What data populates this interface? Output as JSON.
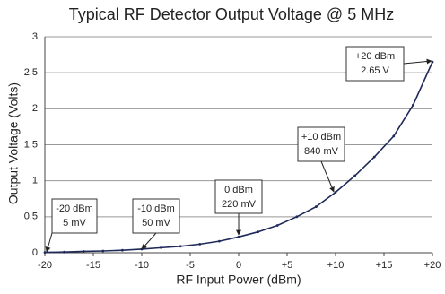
{
  "chart_data": {
    "type": "line",
    "title": "Typical RF Detector Output Voltage @ 5 MHz",
    "x_label": "RF Input Power (dBm)",
    "y_label": "Output Voltage (Volts)",
    "x": [
      -20,
      -18,
      -16,
      -14,
      -12,
      -10,
      -8,
      -6,
      -4,
      -2,
      0,
      2,
      4,
      6,
      8,
      10,
      12,
      14,
      16,
      18,
      20
    ],
    "values": [
      0.005,
      0.01,
      0.02,
      0.025,
      0.035,
      0.05,
      0.07,
      0.09,
      0.12,
      0.16,
      0.22,
      0.29,
      0.38,
      0.5,
      0.64,
      0.84,
      1.07,
      1.33,
      1.62,
      2.05,
      2.65
    ],
    "color": "#1f2a5a",
    "xlim": [
      -20,
      20
    ],
    "xticks": [
      -20,
      -15,
      -10,
      -5,
      0,
      {
        "value": 5,
        "label": "+5"
      },
      {
        "value": 10,
        "label": "+10"
      },
      {
        "value": 15,
        "label": "+15"
      },
      {
        "value": 20,
        "label": "+20"
      }
    ],
    "ylim": [
      0,
      3
    ],
    "yticks": [
      0,
      0.5,
      1,
      1.5,
      2,
      2.5,
      3
    ],
    "grid": true,
    "annotations": [
      {
        "lines": [
          "-20 dBm",
          "5 mV"
        ]
      },
      {
        "lines": [
          "-10 dBm",
          "50 mV"
        ]
      },
      {
        "lines": [
          "0 dBm",
          "220 mV"
        ]
      },
      {
        "lines": [
          "+10 dBm",
          "840 mV"
        ]
      },
      {
        "lines": [
          "+20 dBm",
          "2.65 V"
        ]
      }
    ]
  }
}
